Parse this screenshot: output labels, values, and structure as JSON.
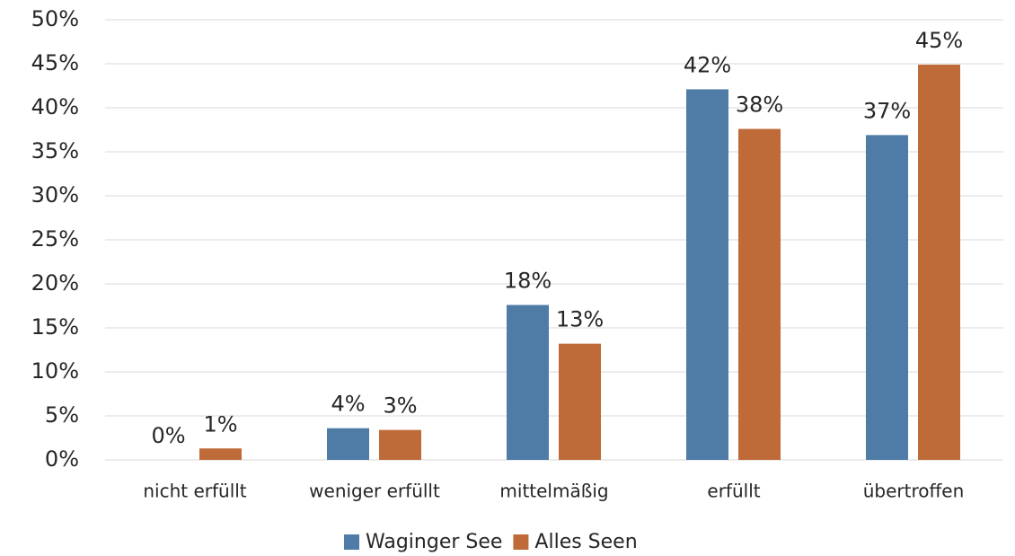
{
  "chart_data": {
    "type": "bar",
    "categories": [
      "nicht erfüllt",
      "weniger erfüllt",
      "mittelmäßig",
      "erfüllt",
      "übertroffen"
    ],
    "series": [
      {
        "name": "Waginger See",
        "color": "#4e7ca7",
        "values": [
          0,
          3.6,
          17.6,
          42.1,
          36.9
        ],
        "value_labels": [
          "0%",
          "4%",
          "18%",
          "42%",
          "37%"
        ]
      },
      {
        "name": "Alles Seen",
        "color": "#bf6a39",
        "values": [
          1.3,
          3.4,
          13.2,
          37.6,
          44.9
        ],
        "value_labels": [
          "1%",
          "3%",
          "13%",
          "38%",
          "45%"
        ]
      }
    ],
    "ylim": [
      0,
      50
    ],
    "yticks": [
      {
        "value": 0,
        "label": "0%"
      },
      {
        "value": 5,
        "label": "5%"
      },
      {
        "value": 10,
        "label": "10%"
      },
      {
        "value": 15,
        "label": "15%"
      },
      {
        "value": 20,
        "label": "20%"
      },
      {
        "value": 25,
        "label": "25%"
      },
      {
        "value": 30,
        "label": "30%"
      },
      {
        "value": 35,
        "label": "35%"
      },
      {
        "value": 40,
        "label": "40%"
      },
      {
        "value": 45,
        "label": "45%"
      },
      {
        "value": 50,
        "label": "50%"
      }
    ],
    "grid": true,
    "legend": "bottom"
  }
}
